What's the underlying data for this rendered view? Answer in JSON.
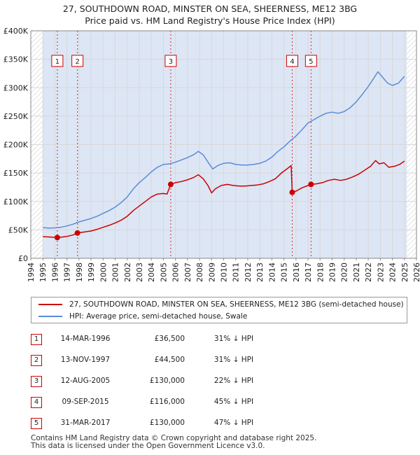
{
  "header": {
    "title_line1": "27, SOUTHDOWN ROAD, MINSTER ON SEA, SHEERNESS, ME12 3BG",
    "title_line2": "Price paid vs. HM Land Registry's House Price Index (HPI)"
  },
  "chart_data": {
    "type": "line",
    "xlim": [
      1994,
      2026
    ],
    "ylim": [
      0,
      400000
    ],
    "x_ticks": [
      "1994",
      "1995",
      "1996",
      "1997",
      "1998",
      "1999",
      "2000",
      "2001",
      "2002",
      "2003",
      "2004",
      "2005",
      "2006",
      "2007",
      "2008",
      "2009",
      "2010",
      "2011",
      "2012",
      "2013",
      "2014",
      "2015",
      "2016",
      "2017",
      "2018",
      "2019",
      "2020",
      "2021",
      "2022",
      "2023",
      "2024",
      "2025",
      "2026"
    ],
    "y_ticks": [
      {
        "value": 0,
        "label": "£0"
      },
      {
        "value": 50000,
        "label": "£50K"
      },
      {
        "value": 100000,
        "label": "£100K"
      },
      {
        "value": 150000,
        "label": "£150K"
      },
      {
        "value": 200000,
        "label": "£200K"
      },
      {
        "value": 250000,
        "label": "£250K"
      },
      {
        "value": 300000,
        "label": "£300K"
      },
      {
        "value": 350000,
        "label": "£350K"
      },
      {
        "value": 400000,
        "label": "£400K"
      }
    ],
    "grid": true,
    "data_range": [
      1995.0,
      2025.2
    ],
    "colors": {
      "property": "#cc0000",
      "hpi": "#5b8cd6",
      "shade": "#dde6f5",
      "grid": "#d8d8d8"
    },
    "series": [
      {
        "name": "27, SOUTHDOWN ROAD, MINSTER ON SEA, SHEERNESS, ME12 3BG (semi-detached house)",
        "key": "property",
        "points": [
          [
            1995.0,
            38000
          ],
          [
            1995.5,
            37500
          ],
          [
            1996.0,
            36800
          ],
          [
            1996.2,
            36500
          ],
          [
            1996.5,
            37000
          ],
          [
            1997.0,
            38500
          ],
          [
            1997.5,
            41000
          ],
          [
            1997.87,
            44500
          ],
          [
            1998.5,
            46500
          ],
          [
            1999.0,
            48000
          ],
          [
            1999.5,
            51000
          ],
          [
            2000.0,
            54500
          ],
          [
            2000.5,
            58000
          ],
          [
            2001.0,
            62000
          ],
          [
            2001.5,
            67000
          ],
          [
            2002.0,
            74000
          ],
          [
            2002.5,
            84000
          ],
          [
            2003.0,
            92000
          ],
          [
            2003.5,
            100000
          ],
          [
            2004.0,
            108000
          ],
          [
            2004.5,
            113000
          ],
          [
            2005.0,
            114000
          ],
          [
            2005.3,
            113000
          ],
          [
            2005.61,
            130000
          ],
          [
            2006.0,
            133000
          ],
          [
            2006.5,
            135000
          ],
          [
            2007.0,
            138000
          ],
          [
            2007.5,
            142000
          ],
          [
            2007.9,
            147000
          ],
          [
            2008.3,
            140000
          ],
          [
            2008.7,
            128000
          ],
          [
            2009.0,
            115000
          ],
          [
            2009.3,
            122000
          ],
          [
            2009.8,
            128000
          ],
          [
            2010.3,
            130000
          ],
          [
            2010.8,
            128000
          ],
          [
            2011.3,
            127000
          ],
          [
            2011.8,
            127000
          ],
          [
            2012.3,
            128000
          ],
          [
            2012.8,
            129000
          ],
          [
            2013.3,
            131000
          ],
          [
            2013.8,
            135000
          ],
          [
            2014.3,
            140000
          ],
          [
            2014.8,
            150000
          ],
          [
            2015.3,
            158000
          ],
          [
            2015.6,
            163000
          ],
          [
            2015.69,
            116000
          ],
          [
            2016.0,
            118000
          ],
          [
            2016.5,
            124000
          ],
          [
            2017.0,
            128000
          ],
          [
            2017.25,
            130000
          ],
          [
            2017.7,
            131000
          ],
          [
            2018.2,
            133000
          ],
          [
            2018.7,
            137000
          ],
          [
            2019.2,
            139000
          ],
          [
            2019.7,
            137000
          ],
          [
            2020.2,
            139000
          ],
          [
            2020.7,
            143000
          ],
          [
            2021.2,
            148000
          ],
          [
            2021.7,
            155000
          ],
          [
            2022.2,
            162000
          ],
          [
            2022.6,
            172000
          ],
          [
            2022.9,
            166000
          ],
          [
            2023.3,
            168000
          ],
          [
            2023.7,
            160000
          ],
          [
            2024.2,
            162000
          ],
          [
            2024.6,
            165000
          ],
          [
            2025.0,
            171000
          ]
        ]
      },
      {
        "name": "HPI: Average price, semi-detached house, Swale",
        "key": "hpi",
        "points": [
          [
            1995.0,
            54000
          ],
          [
            1995.5,
            53000
          ],
          [
            1996.0,
            53500
          ],
          [
            1996.5,
            54500
          ],
          [
            1997.0,
            57000
          ],
          [
            1997.5,
            60000
          ],
          [
            1998.0,
            64000
          ],
          [
            1998.5,
            67000
          ],
          [
            1999.0,
            70000
          ],
          [
            1999.5,
            74000
          ],
          [
            2000.0,
            79000
          ],
          [
            2000.5,
            84000
          ],
          [
            2001.0,
            90000
          ],
          [
            2001.5,
            98000
          ],
          [
            2002.0,
            108000
          ],
          [
            2002.5,
            122000
          ],
          [
            2003.0,
            133000
          ],
          [
            2003.5,
            142000
          ],
          [
            2004.0,
            152000
          ],
          [
            2004.5,
            160000
          ],
          [
            2005.0,
            165000
          ],
          [
            2005.5,
            166000
          ],
          [
            2006.0,
            169000
          ],
          [
            2006.5,
            173000
          ],
          [
            2007.0,
            177000
          ],
          [
            2007.5,
            182000
          ],
          [
            2007.9,
            188000
          ],
          [
            2008.3,
            182000
          ],
          [
            2008.8,
            166000
          ],
          [
            2009.1,
            157000
          ],
          [
            2009.5,
            163000
          ],
          [
            2010.0,
            167000
          ],
          [
            2010.5,
            168000
          ],
          [
            2011.0,
            165000
          ],
          [
            2011.5,
            164000
          ],
          [
            2012.0,
            164000
          ],
          [
            2012.5,
            165000
          ],
          [
            2013.0,
            167000
          ],
          [
            2013.5,
            171000
          ],
          [
            2014.0,
            178000
          ],
          [
            2014.5,
            188000
          ],
          [
            2015.0,
            196000
          ],
          [
            2015.5,
            206000
          ],
          [
            2016.0,
            215000
          ],
          [
            2016.5,
            226000
          ],
          [
            2017.0,
            238000
          ],
          [
            2017.5,
            244000
          ],
          [
            2018.0,
            250000
          ],
          [
            2018.5,
            255000
          ],
          [
            2019.0,
            257000
          ],
          [
            2019.5,
            255000
          ],
          [
            2020.0,
            258000
          ],
          [
            2020.5,
            265000
          ],
          [
            2021.0,
            275000
          ],
          [
            2021.5,
            288000
          ],
          [
            2022.0,
            302000
          ],
          [
            2022.5,
            318000
          ],
          [
            2022.8,
            328000
          ],
          [
            2023.2,
            318000
          ],
          [
            2023.6,
            308000
          ],
          [
            2024.0,
            304000
          ],
          [
            2024.5,
            308000
          ],
          [
            2025.0,
            320000
          ]
        ]
      }
    ],
    "sales": [
      {
        "label": "1",
        "x": 1996.2,
        "y": 36500
      },
      {
        "label": "2",
        "x": 1997.87,
        "y": 44500
      },
      {
        "label": "3",
        "x": 2005.61,
        "y": 130000
      },
      {
        "label": "4",
        "x": 2015.69,
        "y": 116000
      },
      {
        "label": "5",
        "x": 2017.25,
        "y": 130000
      }
    ]
  },
  "legend": {
    "property_label": "27, SOUTHDOWN ROAD, MINSTER ON SEA, SHEERNESS, ME12 3BG (semi-detached house)",
    "hpi_label": "HPI: Average price, semi-detached house, Swale"
  },
  "sales_table": [
    {
      "num": "1",
      "date": "14-MAR-1996",
      "price": "£36,500",
      "hpi": "31% ↓ HPI"
    },
    {
      "num": "2",
      "date": "13-NOV-1997",
      "price": "£44,500",
      "hpi": "31% ↓ HPI"
    },
    {
      "num": "3",
      "date": "12-AUG-2005",
      "price": "£130,000",
      "hpi": "22% ↓ HPI"
    },
    {
      "num": "4",
      "date": "09-SEP-2015",
      "price": "£116,000",
      "hpi": "45% ↓ HPI"
    },
    {
      "num": "5",
      "date": "31-MAR-2017",
      "price": "£130,000",
      "hpi": "47% ↓ HPI"
    }
  ],
  "footer": {
    "line1": "Contains HM Land Registry data © Crown copyright and database right 2025.",
    "line2": "This data is licensed under the Open Government Licence v3.0."
  }
}
